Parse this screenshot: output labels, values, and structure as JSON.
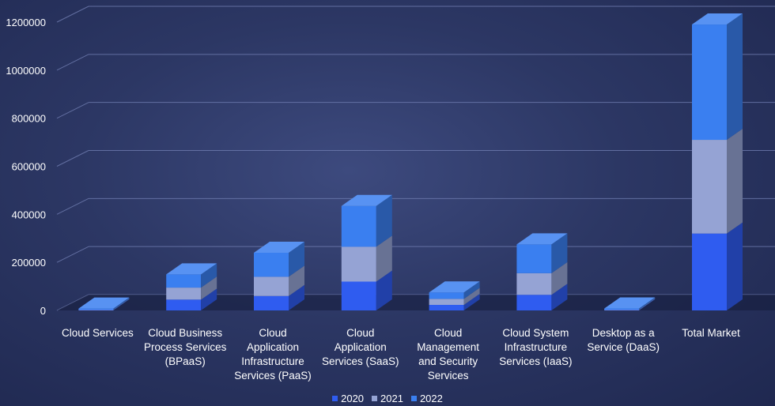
{
  "chart_data": {
    "type": "bar",
    "stacked": true,
    "three_d": true,
    "categories": [
      "Cloud Services",
      "Cloud Business Process Services (BPaaS)",
      "Cloud Application Infrastructure Services (PaaS)",
      "Cloud Application Services (SaaS)",
      "Cloud Management and Security Services",
      "Cloud System Infrastructure Services (IaaS)",
      "Desktop as a Service (DaaS)",
      "Total Market"
    ],
    "category_lines": [
      [
        "Cloud Services"
      ],
      [
        "Cloud Business",
        "Process Services",
        "(BPaaS)"
      ],
      [
        "Cloud",
        "Application",
        "Infrastructure",
        "Services (PaaS)"
      ],
      [
        "Cloud",
        "Application",
        "Services (SaaS)"
      ],
      [
        "Cloud",
        "Management",
        "and Security",
        "Services"
      ],
      [
        "Cloud System",
        "Infrastructure",
        "Services (IaaS)"
      ],
      [
        "Desktop as a",
        "Service (DaaS)"
      ],
      [
        "Total Market"
      ]
    ],
    "series": [
      {
        "name": "2020",
        "color": "#2f5cf0",
        "values": [
          1500,
          45000,
          60000,
          120000,
          23000,
          65000,
          1600,
          320000
        ]
      },
      {
        "name": "2021",
        "color": "#95a3d4",
        "values": [
          1500,
          50000,
          80000,
          145000,
          25000,
          90000,
          1600,
          390000
        ]
      },
      {
        "name": "2022",
        "color": "#3a7ff0",
        "values": [
          1500,
          55000,
          100000,
          170000,
          27000,
          120000,
          1600,
          480000
        ]
      }
    ],
    "yticks": [
      "0",
      "200000",
      "400000",
      "600000",
      "800000",
      "1000000",
      "1200000"
    ],
    "ylim": [
      0,
      1200000
    ],
    "grid": true,
    "legend": "bottom",
    "title": "",
    "xlabel": "",
    "ylabel": ""
  }
}
